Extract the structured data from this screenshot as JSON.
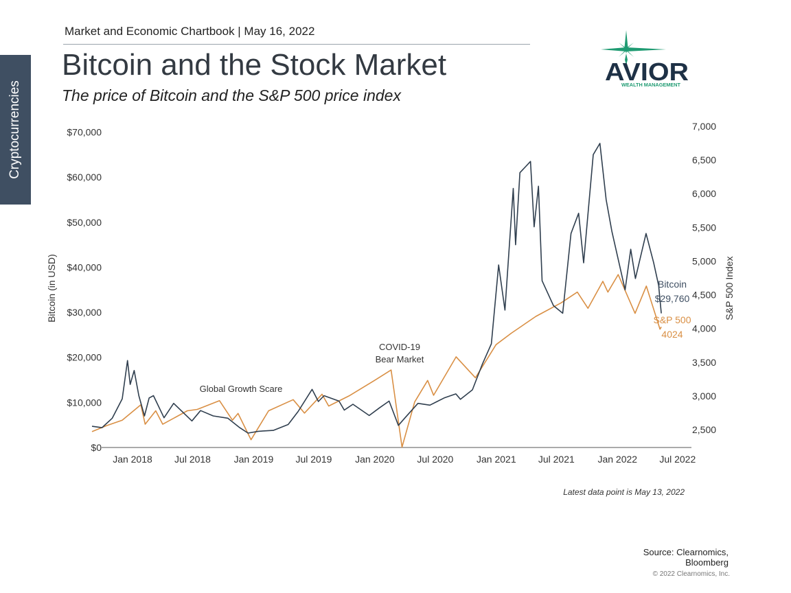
{
  "side_tab": "Cryptocurrencies",
  "header": "Market and Economic Chartbook | May 16, 2022",
  "title": "Bitcoin and the Stock Market",
  "subtitle": "The price of Bitcoin and the S&P 500 price index",
  "logo": {
    "name": "AVIOR",
    "tagline": "WEALTH MANAGEMENT",
    "star_color": "#1f9b72",
    "text_color": "#1e3146"
  },
  "footnote": "Latest data point is May 13, 2022",
  "source_line1": "Source: Clearnomics,",
  "source_line2": "Bloomberg",
  "copyright": "© 2022 Clearnomics, Inc.",
  "chart_data": {
    "type": "line",
    "x_ticks": [
      "Jan 2018",
      "Jul 2018",
      "Jan 2019",
      "Jul 2019",
      "Jan 2020",
      "Jul 2020",
      "Jan 2021",
      "Jul 2021",
      "Jan 2022",
      "Jul 2022"
    ],
    "y_left": {
      "label": "Bitcoin (in USD)",
      "range": [
        0,
        70000
      ],
      "ticks": [
        "$0",
        "$10,000",
        "$20,000",
        "$30,000",
        "$40,000",
        "$50,000",
        "$60,000",
        "$70,000"
      ]
    },
    "y_right": {
      "label": "S&P 500 Index",
      "range": [
        2200,
        7000
      ],
      "ticks": [
        "2,500",
        "3,000",
        "3,500",
        "4,000",
        "4,500",
        "5,000",
        "5,500",
        "6,000",
        "6,500",
        "7,000"
      ]
    },
    "series": [
      {
        "name": "Bitcoin",
        "axis": "left",
        "color": "#2f3e4e",
        "end_label": "$29,760",
        "points": [
          [
            "2017-09-01",
            4700
          ],
          [
            "2017-10-01",
            4400
          ],
          [
            "2017-11-01",
            6500
          ],
          [
            "2017-12-01",
            10800
          ],
          [
            "2017-12-17",
            19300
          ],
          [
            "2017-12-25",
            14000
          ],
          [
            "2018-01-06",
            17100
          ],
          [
            "2018-01-20",
            11500
          ],
          [
            "2018-02-06",
            7000
          ],
          [
            "2018-02-20",
            11000
          ],
          [
            "2018-03-05",
            11500
          ],
          [
            "2018-04-06",
            6600
          ],
          [
            "2018-05-05",
            9800
          ],
          [
            "2018-06-29",
            5900
          ],
          [
            "2018-07-25",
            8200
          ],
          [
            "2018-09-01",
            7000
          ],
          [
            "2018-10-15",
            6500
          ],
          [
            "2018-11-20",
            4400
          ],
          [
            "2018-12-15",
            3200
          ],
          [
            "2019-01-15",
            3600
          ],
          [
            "2019-03-01",
            3800
          ],
          [
            "2019-04-15",
            5100
          ],
          [
            "2019-05-15",
            8000
          ],
          [
            "2019-06-26",
            12900
          ],
          [
            "2019-07-15",
            10200
          ],
          [
            "2019-08-01",
            11500
          ],
          [
            "2019-09-15",
            10300
          ],
          [
            "2019-10-01",
            8300
          ],
          [
            "2019-10-27",
            9600
          ],
          [
            "2019-12-15",
            7100
          ],
          [
            "2020-01-15",
            8800
          ],
          [
            "2020-02-13",
            10300
          ],
          [
            "2020-03-12",
            4900
          ],
          [
            "2020-04-01",
            6600
          ],
          [
            "2020-05-10",
            9800
          ],
          [
            "2020-06-15",
            9400
          ],
          [
            "2020-07-28",
            11000
          ],
          [
            "2020-09-01",
            11900
          ],
          [
            "2020-09-15",
            10700
          ],
          [
            "2020-10-21",
            12800
          ],
          [
            "2020-11-20",
            18500
          ],
          [
            "2020-12-17",
            23000
          ],
          [
            "2021-01-08",
            40500
          ],
          [
            "2021-01-27",
            30500
          ],
          [
            "2021-02-21",
            57500
          ],
          [
            "2021-02-28",
            45000
          ],
          [
            "2021-03-13",
            61000
          ],
          [
            "2021-04-14",
            63500
          ],
          [
            "2021-04-25",
            49000
          ],
          [
            "2021-05-08",
            58000
          ],
          [
            "2021-05-19",
            37000
          ],
          [
            "2021-06-22",
            31500
          ],
          [
            "2021-07-20",
            29800
          ],
          [
            "2021-08-14",
            47500
          ],
          [
            "2021-09-06",
            52000
          ],
          [
            "2021-09-21",
            41000
          ],
          [
            "2021-10-20",
            65000
          ],
          [
            "2021-11-09",
            67500
          ],
          [
            "2021-11-28",
            55000
          ],
          [
            "2021-12-15",
            48000
          ],
          [
            "2022-01-24",
            35000
          ],
          [
            "2022-02-10",
            44000
          ],
          [
            "2022-02-24",
            37500
          ],
          [
            "2022-03-28",
            47500
          ],
          [
            "2022-04-20",
            41000
          ],
          [
            "2022-05-05",
            36000
          ],
          [
            "2022-05-13",
            29760
          ]
        ]
      },
      {
        "name": "S&P 500",
        "axis": "right",
        "color": "#d98f44",
        "end_label": "4024",
        "points": [
          [
            "2017-09-01",
            2470
          ],
          [
            "2017-10-15",
            2560
          ],
          [
            "2017-12-01",
            2640
          ],
          [
            "2018-01-26",
            2870
          ],
          [
            "2018-02-08",
            2580
          ],
          [
            "2018-03-12",
            2780
          ],
          [
            "2018-04-02",
            2580
          ],
          [
            "2018-06-15",
            2780
          ],
          [
            "2018-07-15",
            2800
          ],
          [
            "2018-09-20",
            2930
          ],
          [
            "2018-10-29",
            2640
          ],
          [
            "2018-11-15",
            2740
          ],
          [
            "2018-12-24",
            2350
          ],
          [
            "2019-02-15",
            2780
          ],
          [
            "2019-04-30",
            2945
          ],
          [
            "2019-06-03",
            2745
          ],
          [
            "2019-07-26",
            3025
          ],
          [
            "2019-08-15",
            2850
          ],
          [
            "2019-10-15",
            3000
          ],
          [
            "2019-12-31",
            3230
          ],
          [
            "2020-02-19",
            3385
          ],
          [
            "2020-03-23",
            2240
          ],
          [
            "2020-04-30",
            2910
          ],
          [
            "2020-06-08",
            3230
          ],
          [
            "2020-06-26",
            3010
          ],
          [
            "2020-09-02",
            3580
          ],
          [
            "2020-10-30",
            3270
          ],
          [
            "2020-12-31",
            3760
          ],
          [
            "2021-02-15",
            3930
          ],
          [
            "2021-04-30",
            4180
          ],
          [
            "2021-07-15",
            4380
          ],
          [
            "2021-09-02",
            4540
          ],
          [
            "2021-10-04",
            4300
          ],
          [
            "2021-11-18",
            4700
          ],
          [
            "2021-12-03",
            4540
          ],
          [
            "2022-01-03",
            4800
          ],
          [
            "2022-02-23",
            4225
          ],
          [
            "2022-03-29",
            4630
          ],
          [
            "2022-05-09",
            3990
          ],
          [
            "2022-05-13",
            4024
          ]
        ]
      }
    ],
    "annotations": [
      {
        "id": "global",
        "lines": [
          "Global Growth Scare"
        ]
      },
      {
        "id": "covid",
        "lines": [
          "COVID-19",
          "Bear Market"
        ]
      }
    ]
  }
}
